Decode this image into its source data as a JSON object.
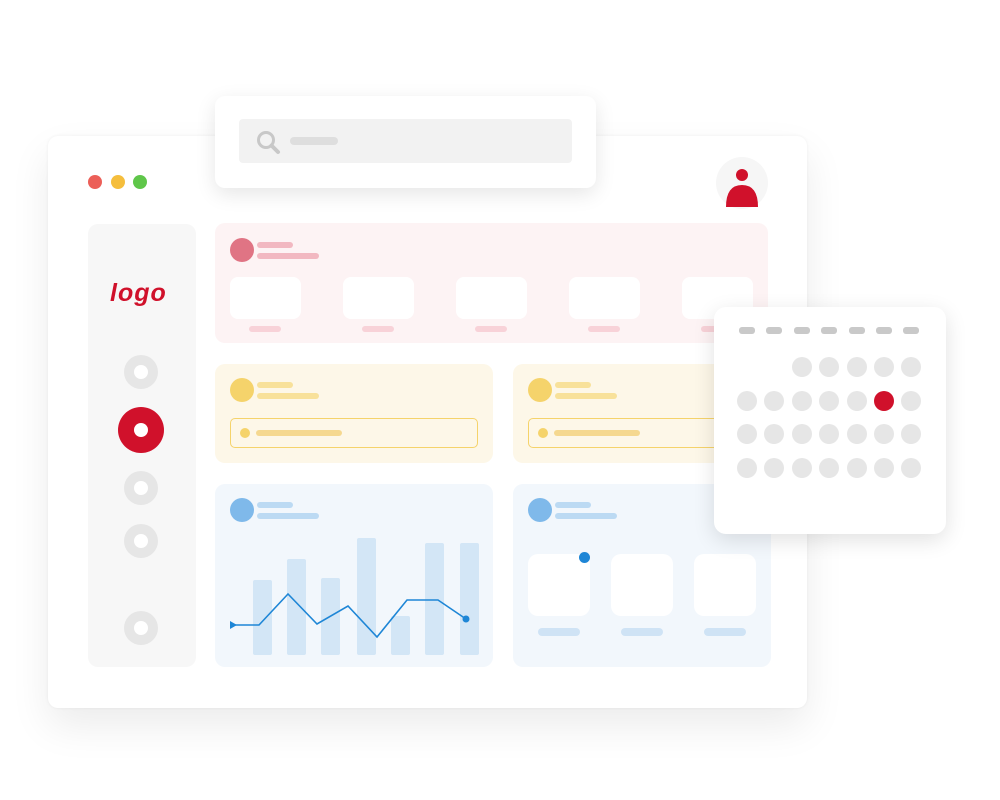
{
  "window": {
    "controls": [
      {
        "name": "close",
        "color": "#ec5f58"
      },
      {
        "name": "minimize",
        "color": "#f5be3d"
      },
      {
        "name": "maximize",
        "color": "#5fc64a"
      }
    ]
  },
  "search": {
    "icon": "search-icon",
    "placeholder": ""
  },
  "brand": {
    "logo": "logo",
    "color": "#d0112b"
  },
  "user": {
    "icon": "user-icon"
  },
  "sidebar": {
    "items": [
      {
        "icon": "nav-icon",
        "active": false
      },
      {
        "icon": "nav-icon",
        "active": true
      },
      {
        "icon": "nav-icon",
        "active": false
      },
      {
        "icon": "nav-icon",
        "active": false
      },
      {
        "icon": "nav-icon",
        "active": false
      }
    ]
  },
  "colors": {
    "red": "#d0112b",
    "pink_bg": "#fdf3f4",
    "pink": "#e07484",
    "yellow_bg": "#fdf7e8",
    "yellow": "#f5d36b",
    "blue_bg": "#f2f7fc",
    "blue": "#7fb9ea",
    "line": "#1e86d6"
  },
  "chart_data": {
    "type": "bar",
    "bars": [
      75,
      96,
      77,
      117,
      39,
      112,
      112
    ],
    "line": [
      31,
      31,
      62,
      32,
      50,
      19,
      56,
      56,
      37
    ],
    "axes": false,
    "grid": false
  },
  "calendar": {
    "weekday_count": 7,
    "first_day_column": 3,
    "days": 26,
    "selected_day": 11
  }
}
